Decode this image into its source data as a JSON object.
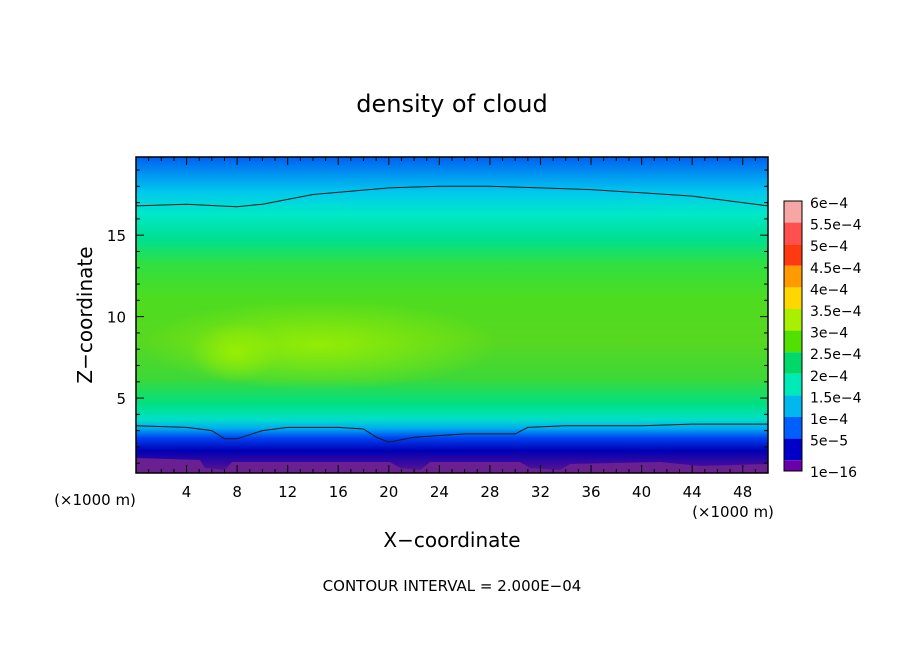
{
  "chart_data": {
    "type": "heatmap",
    "title": "density of cloud",
    "xlabel": "X−coordinate",
    "ylabel": "Z−coordinate",
    "x_unit_left": "(×1000 m)",
    "x_unit_right": "(×1000 m)",
    "xlim": [
      0,
      50
    ],
    "ylim": [
      0.4,
      19.8
    ],
    "xticks": [
      4,
      8,
      12,
      16,
      20,
      24,
      28,
      32,
      36,
      40,
      44,
      48
    ],
    "yticks": [
      5,
      10,
      15
    ],
    "footer": "CONTOUR INTERVAL = 2.000E−04",
    "colorbar": {
      "labels": [
        "6e−4",
        "5.5e−4",
        "5e−4",
        "4.5e−4",
        "4e−4",
        "3.5e−4",
        "3e−4",
        "2.5e−4",
        "2e−4",
        "1.5e−4",
        "1e−4",
        "5e−5",
        "1e−16"
      ],
      "colors": [
        "#f7a6a6",
        "#ff4f4f",
        "#ff3a10",
        "#ff9a00",
        "#ffd700",
        "#a8f000",
        "#52e000",
        "#00d86a",
        "#00eab8",
        "#00b8ee",
        "#0060ff",
        "#0000c8",
        "#6a00a8"
      ]
    },
    "contour_lines": [
      {
        "level": 0.0002,
        "points": [
          [
            0,
            16.8
          ],
          [
            4,
            16.9
          ],
          [
            8,
            16.75
          ],
          [
            10,
            16.9
          ],
          [
            14,
            17.5
          ],
          [
            20,
            17.9
          ],
          [
            24,
            18.0
          ],
          [
            28,
            18.0
          ],
          [
            32,
            17.9
          ],
          [
            36,
            17.8
          ],
          [
            40,
            17.6
          ],
          [
            44,
            17.4
          ],
          [
            48,
            17.0
          ],
          [
            50,
            16.8
          ]
        ]
      },
      {
        "level": 0.0002,
        "points": [
          [
            0,
            3.3
          ],
          [
            4,
            3.2
          ],
          [
            6,
            3.0
          ],
          [
            7,
            2.5
          ],
          [
            8,
            2.5
          ],
          [
            10,
            3.0
          ],
          [
            12,
            3.2
          ],
          [
            16,
            3.2
          ],
          [
            18,
            3.1
          ],
          [
            19,
            2.6
          ],
          [
            20,
            2.3
          ],
          [
            22,
            2.6
          ],
          [
            26,
            2.8
          ],
          [
            28,
            2.8
          ],
          [
            30,
            2.8
          ],
          [
            31,
            3.2
          ],
          [
            34,
            3.3
          ],
          [
            40,
            3.3
          ],
          [
            44,
            3.4
          ],
          [
            48,
            3.4
          ],
          [
            50,
            3.4
          ]
        ]
      }
    ]
  }
}
